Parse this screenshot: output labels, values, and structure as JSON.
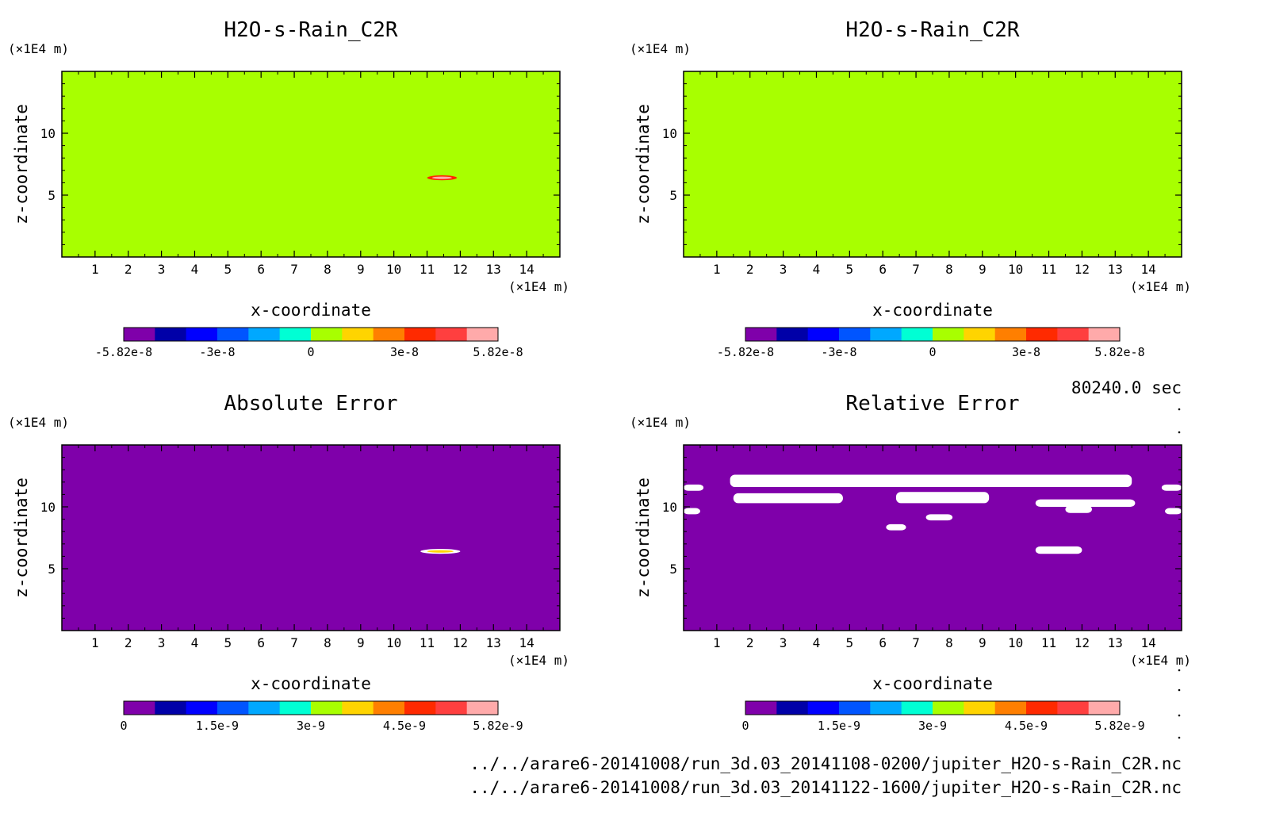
{
  "panels": [
    {
      "title": "H2O-s-Rain_C2R",
      "unit_label": "(×1E4 m)",
      "xlabel": "x-coordinate",
      "ylabel": "z-coordinate",
      "xticks": [
        "1",
        "2",
        "3",
        "4",
        "5",
        "6",
        "7",
        "8",
        "9",
        "10",
        "11",
        "12",
        "13",
        "14"
      ],
      "yticks": [
        "10",
        "5"
      ],
      "background": "#a8ff00",
      "colorbar_ticks": [
        "-5.82e-8",
        "-3e-8",
        "0",
        "3e-8",
        "5.82e-8"
      ]
    },
    {
      "title": "H2O-s-Rain_C2R",
      "unit_label": "(×1E4 m)",
      "xlabel": "x-coordinate",
      "ylabel": "z-coordinate",
      "xticks": [
        "1",
        "2",
        "3",
        "4",
        "5",
        "6",
        "7",
        "8",
        "9",
        "10",
        "11",
        "12",
        "13",
        "14"
      ],
      "yticks": [
        "10",
        "5"
      ],
      "background": "#a8ff00",
      "colorbar_ticks": [
        "-5.82e-8",
        "-3e-8",
        "0",
        "3e-8",
        "5.82e-8"
      ]
    },
    {
      "title": "Absolute Error",
      "unit_label": "(×1E4 m)",
      "xlabel": "x-coordinate",
      "ylabel": "z-coordinate",
      "xticks": [
        "1",
        "2",
        "3",
        "4",
        "5",
        "6",
        "7",
        "8",
        "9",
        "10",
        "11",
        "12",
        "13",
        "14"
      ],
      "yticks": [
        "10",
        "5"
      ],
      "background": "#7f00aa",
      "colorbar_ticks": [
        "0",
        "1.5e-9",
        "3e-9",
        "4.5e-9",
        "5.82e-9"
      ]
    },
    {
      "title": "Relative Error",
      "unit_label": "(×1E4 m)",
      "xlabel": "x-coordinate",
      "ylabel": "z-coordinate",
      "xticks": [
        "1",
        "2",
        "3",
        "4",
        "5",
        "6",
        "7",
        "8",
        "9",
        "10",
        "11",
        "12",
        "13",
        "14"
      ],
      "yticks": [
        "10",
        "5"
      ],
      "background": "#7f00aa",
      "colorbar_ticks": [
        "0",
        "1.5e-9",
        "3e-9",
        "4.5e-9",
        "5.82e-9"
      ]
    }
  ],
  "colorbar_colors": [
    "#7f00aa",
    "#0000a8",
    "#0000ff",
    "#0055ff",
    "#00a8ff",
    "#00ffd4",
    "#a8ff00",
    "#ffd400",
    "#ff7f00",
    "#ff2a00",
    "#ff3f3f",
    "#ffaaaa"
  ],
  "time_label": "80240.0 sec",
  "file_paths": [
    "../../arare6-20141008/run_3d.03_20141108-0200/jupiter_H2O-s-Rain_C2R.nc",
    "../../arare6-20141008/run_3d.03_20141122-1600/jupiter_H2O-s-Rain_C2R.nc"
  ],
  "chart_data": [
    {
      "type": "heatmap",
      "title": "H2O-s-Rain_C2R",
      "xlabel": "x-coordinate",
      "ylabel": "z-coordinate",
      "xunit": "(×1E4 m)",
      "yunit": "(×1E4 m)",
      "xlim": [
        0,
        15
      ],
      "ylim": [
        0,
        15
      ],
      "colorbar_range": [
        -5.82e-08,
        5.82e-08
      ],
      "background_value": 0,
      "features": [
        {
          "x": [
            11.0,
            11.9
          ],
          "z": [
            6.2,
            6.6
          ],
          "value_max": 5.82e-08,
          "colors": [
            "#ff2a00",
            "#ffaaaa"
          ]
        }
      ]
    },
    {
      "type": "heatmap",
      "title": "H2O-s-Rain_C2R",
      "xlabel": "x-coordinate",
      "ylabel": "z-coordinate",
      "xunit": "(×1E4 m)",
      "yunit": "(×1E4 m)",
      "xlim": [
        0,
        15
      ],
      "ylim": [
        0,
        15
      ],
      "colorbar_range": [
        -5.82e-08,
        5.82e-08
      ],
      "background_value": 0,
      "features": []
    },
    {
      "type": "heatmap",
      "title": "Absolute Error",
      "xlabel": "x-coordinate",
      "ylabel": "z-coordinate",
      "xunit": "(×1E4 m)",
      "yunit": "(×1E4 m)",
      "xlim": [
        0,
        15
      ],
      "ylim": [
        0,
        15
      ],
      "colorbar_range": [
        0,
        5.82e-09
      ],
      "background_value": 0,
      "features": [
        {
          "x": [
            10.8,
            12.0
          ],
          "z": [
            6.2,
            6.6
          ],
          "value_max": 5.82e-09,
          "colors": [
            "#ffffff",
            "#ffd400"
          ]
        }
      ]
    },
    {
      "type": "heatmap",
      "title": "Relative Error",
      "xlabel": "x-coordinate",
      "ylabel": "z-coordinate",
      "xunit": "(×1E4 m)",
      "yunit": "(×1E4 m)",
      "xlim": [
        0,
        15
      ],
      "ylim": [
        0,
        15
      ],
      "colorbar_range": [
        0,
        5.82e-09
      ],
      "background_value": 0,
      "white_regions": [
        {
          "x": [
            1.4,
            13.5
          ],
          "z": [
            11.6,
            12.6
          ]
        },
        {
          "x": [
            0.0,
            0.6
          ],
          "z": [
            11.3,
            11.8
          ]
        },
        {
          "x": [
            14.4,
            15.0
          ],
          "z": [
            11.3,
            11.8
          ]
        },
        {
          "x": [
            1.5,
            4.8
          ],
          "z": [
            10.3,
            11.1
          ]
        },
        {
          "x": [
            6.4,
            9.2
          ],
          "z": [
            10.3,
            11.2
          ]
        },
        {
          "x": [
            10.6,
            13.6
          ],
          "z": [
            10.0,
            10.6
          ]
        },
        {
          "x": [
            11.5,
            12.3
          ],
          "z": [
            9.5,
            10.1
          ]
        },
        {
          "x": [
            0.0,
            0.5
          ],
          "z": [
            9.4,
            9.9
          ]
        },
        {
          "x": [
            14.5,
            15.0
          ],
          "z": [
            9.4,
            9.9
          ]
        },
        {
          "x": [
            7.3,
            8.1
          ],
          "z": [
            8.9,
            9.4
          ]
        },
        {
          "x": [
            6.1,
            6.7
          ],
          "z": [
            8.1,
            8.6
          ]
        },
        {
          "x": [
            10.6,
            12.0
          ],
          "z": [
            6.2,
            6.8
          ]
        }
      ]
    }
  ]
}
